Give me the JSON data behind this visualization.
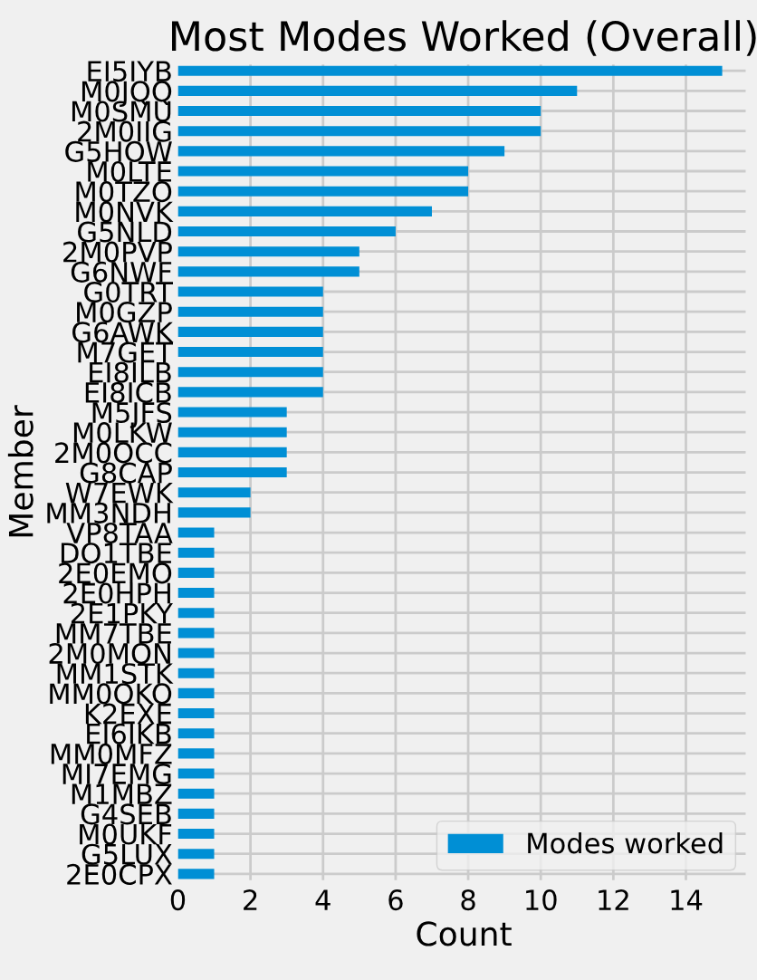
{
  "chart_data": {
    "type": "bar",
    "orientation": "horizontal",
    "title": "Most Modes Worked (Overall)",
    "xlabel": "Count",
    "ylabel": "Member",
    "categories": [
      "EI5IYB",
      "M0JQQ",
      "M0SMU",
      "2M0IIG",
      "G5HOW",
      "M0LTE",
      "M0TZO",
      "M0NVK",
      "G5NLD",
      "2M0PVP",
      "G6NWF",
      "G0TRT",
      "M0GZP",
      "G6AWK",
      "M7GET",
      "EI8ILB",
      "EI8ICB",
      "M5JFS",
      "M0LKW",
      "2M0OCC",
      "G8CAP",
      "W7EWK",
      "MM3NDH",
      "VP8TAA",
      "DO1TBE",
      "2E0EMO",
      "2E0HPH",
      "2E1PKY",
      "MM7TBE",
      "2M0MQN",
      "MM1STK",
      "MM0OKO",
      "K2EXE",
      "EI6IKB",
      "MM0MFZ",
      "MI7EMG",
      "M1MBZ",
      "G4SEB",
      "M0UKF",
      "G5LUX",
      "2E0CPX"
    ],
    "series": [
      {
        "name": "Modes worked",
        "color": "#008fd5",
        "values": [
          15,
          11,
          10,
          10,
          9,
          8,
          8,
          7,
          6,
          5,
          5,
          4,
          4,
          4,
          4,
          4,
          4,
          3,
          3,
          3,
          3,
          2,
          2,
          1,
          1,
          1,
          1,
          1,
          1,
          1,
          1,
          1,
          1,
          1,
          1,
          1,
          1,
          1,
          1,
          1,
          1
        ]
      }
    ],
    "xlim": [
      0,
      15.75
    ],
    "xticks": [
      0,
      2,
      4,
      6,
      8,
      10,
      12,
      14
    ],
    "grid": true,
    "legend": "bottom right"
  }
}
